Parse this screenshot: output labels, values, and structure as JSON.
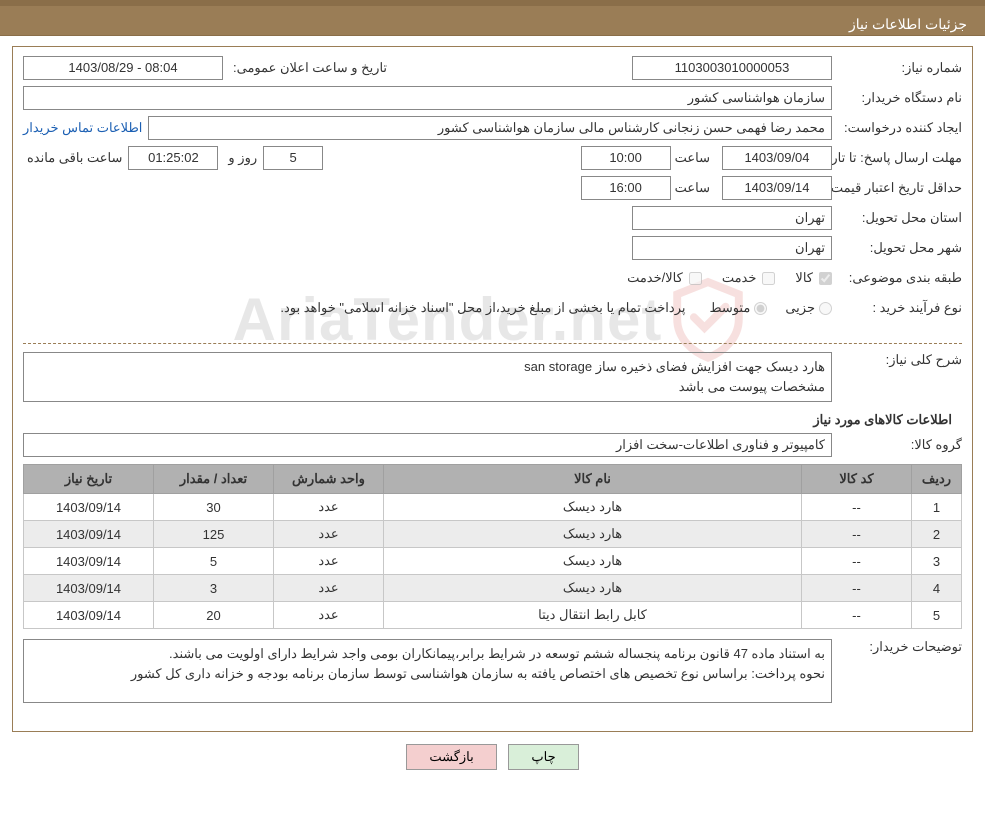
{
  "header": {
    "title": "جزئیات اطلاعات نیاز"
  },
  "fields": {
    "need_no_label": "شماره نیاز:",
    "need_no": "1103003010000053",
    "announce_label": "تاریخ و ساعت اعلان عمومی:",
    "announce": "08:04 - 1403/08/29",
    "buyer_org_label": "نام دستگاه خریدار:",
    "buyer_org": "سازمان هواشناسی کشور",
    "requester_label": "ایجاد کننده درخواست:",
    "requester": "محمد رضا فهمی حسن زنجانی کارشناس مالی سازمان هواشناسی کشور",
    "contact_link": "اطلاعات تماس خریدار",
    "deadline_label1": "مهلت ارسال پاسخ:",
    "deadline_label2": "تا تاریخ:",
    "deadline_date": "1403/09/04",
    "time_label": "ساعت",
    "deadline_time": "10:00",
    "days_lbl": "روز و",
    "days_val": "5",
    "countdown": "01:25:02",
    "countdown_lbl": "ساعت باقی مانده",
    "min_valid_label1": "حداقل تاریخ اعتبار قیمت:",
    "min_valid_label2": "تا تاریخ:",
    "min_valid_date": "1403/09/14",
    "min_valid_time": "16:00",
    "province_label": "استان محل تحویل:",
    "province": "تهران",
    "city_label": "شهر محل تحویل:",
    "city": "تهران",
    "class_label": "طبقه بندی موضوعی:",
    "class_goods": "کالا",
    "class_service": "خدمت",
    "class_both": "کالا/خدمت",
    "proc_type_label": "نوع فرآیند خرید :",
    "proc_small": "جزیی",
    "proc_medium": "متوسط",
    "pay_note": "پرداخت تمام یا بخشی از مبلغ خرید،از محل \"اسناد خزانه اسلامی\" خواهد بود.",
    "desc_label": "شرح کلی نیاز:",
    "desc_line1": "هارد دیسک جهت افزایش فضای ذخیره ساز san storage",
    "desc_line2": "مشخصات پیوست می باشد",
    "goods_info_title": "اطلاعات کالاهای مورد نیاز",
    "group_label": "گروه کالا:",
    "group_value": "کامپیوتر و فناوری اطلاعات-سخت افزار",
    "buyer_notes_label": "توضیحات خریدار:",
    "buyer_notes": "به استناد ماده 47 قانون برنامه پنجساله ششم توسعه در شرایط برابر،پیمانکاران بومی واجد شرایط دارای اولویت می باشند.\nنحوه پرداخت: براساس نوع تخصیص های اختصاص یافته به سازمان هواشناسی توسط سازمان برنامه بودجه و خزانه داری کل کشور"
  },
  "table": {
    "columns": [
      "ردیف",
      "کد کالا",
      "نام کالا",
      "واحد شمارش",
      "تعداد / مقدار",
      "تاریخ نیاز"
    ],
    "rows": [
      [
        "1",
        "--",
        "هارد دیسک",
        "عدد",
        "30",
        "1403/09/14"
      ],
      [
        "2",
        "--",
        "هارد دیسک",
        "عدد",
        "125",
        "1403/09/14"
      ],
      [
        "3",
        "--",
        "هارد دیسک",
        "عدد",
        "5",
        "1403/09/14"
      ],
      [
        "4",
        "--",
        "هارد دیسک",
        "عدد",
        "3",
        "1403/09/14"
      ],
      [
        "5",
        "--",
        "کابل رابط انتقال دیتا",
        "عدد",
        "20",
        "1403/09/14"
      ]
    ],
    "col_widths": [
      "50px",
      "110px",
      "auto",
      "110px",
      "120px",
      "130px"
    ],
    "header_bg": "#b1b1b1",
    "row_alt_bg": "#ececec",
    "border_color": "#c7c7c7"
  },
  "buttons": {
    "print": "چاپ",
    "back": "بازگشت"
  },
  "watermark": {
    "text": "AriaTender.net"
  },
  "colors": {
    "header_bg": "#9a7d56",
    "header_border": "#8a6e49",
    "link": "#1b5fb3",
    "box_border": "#888888"
  }
}
